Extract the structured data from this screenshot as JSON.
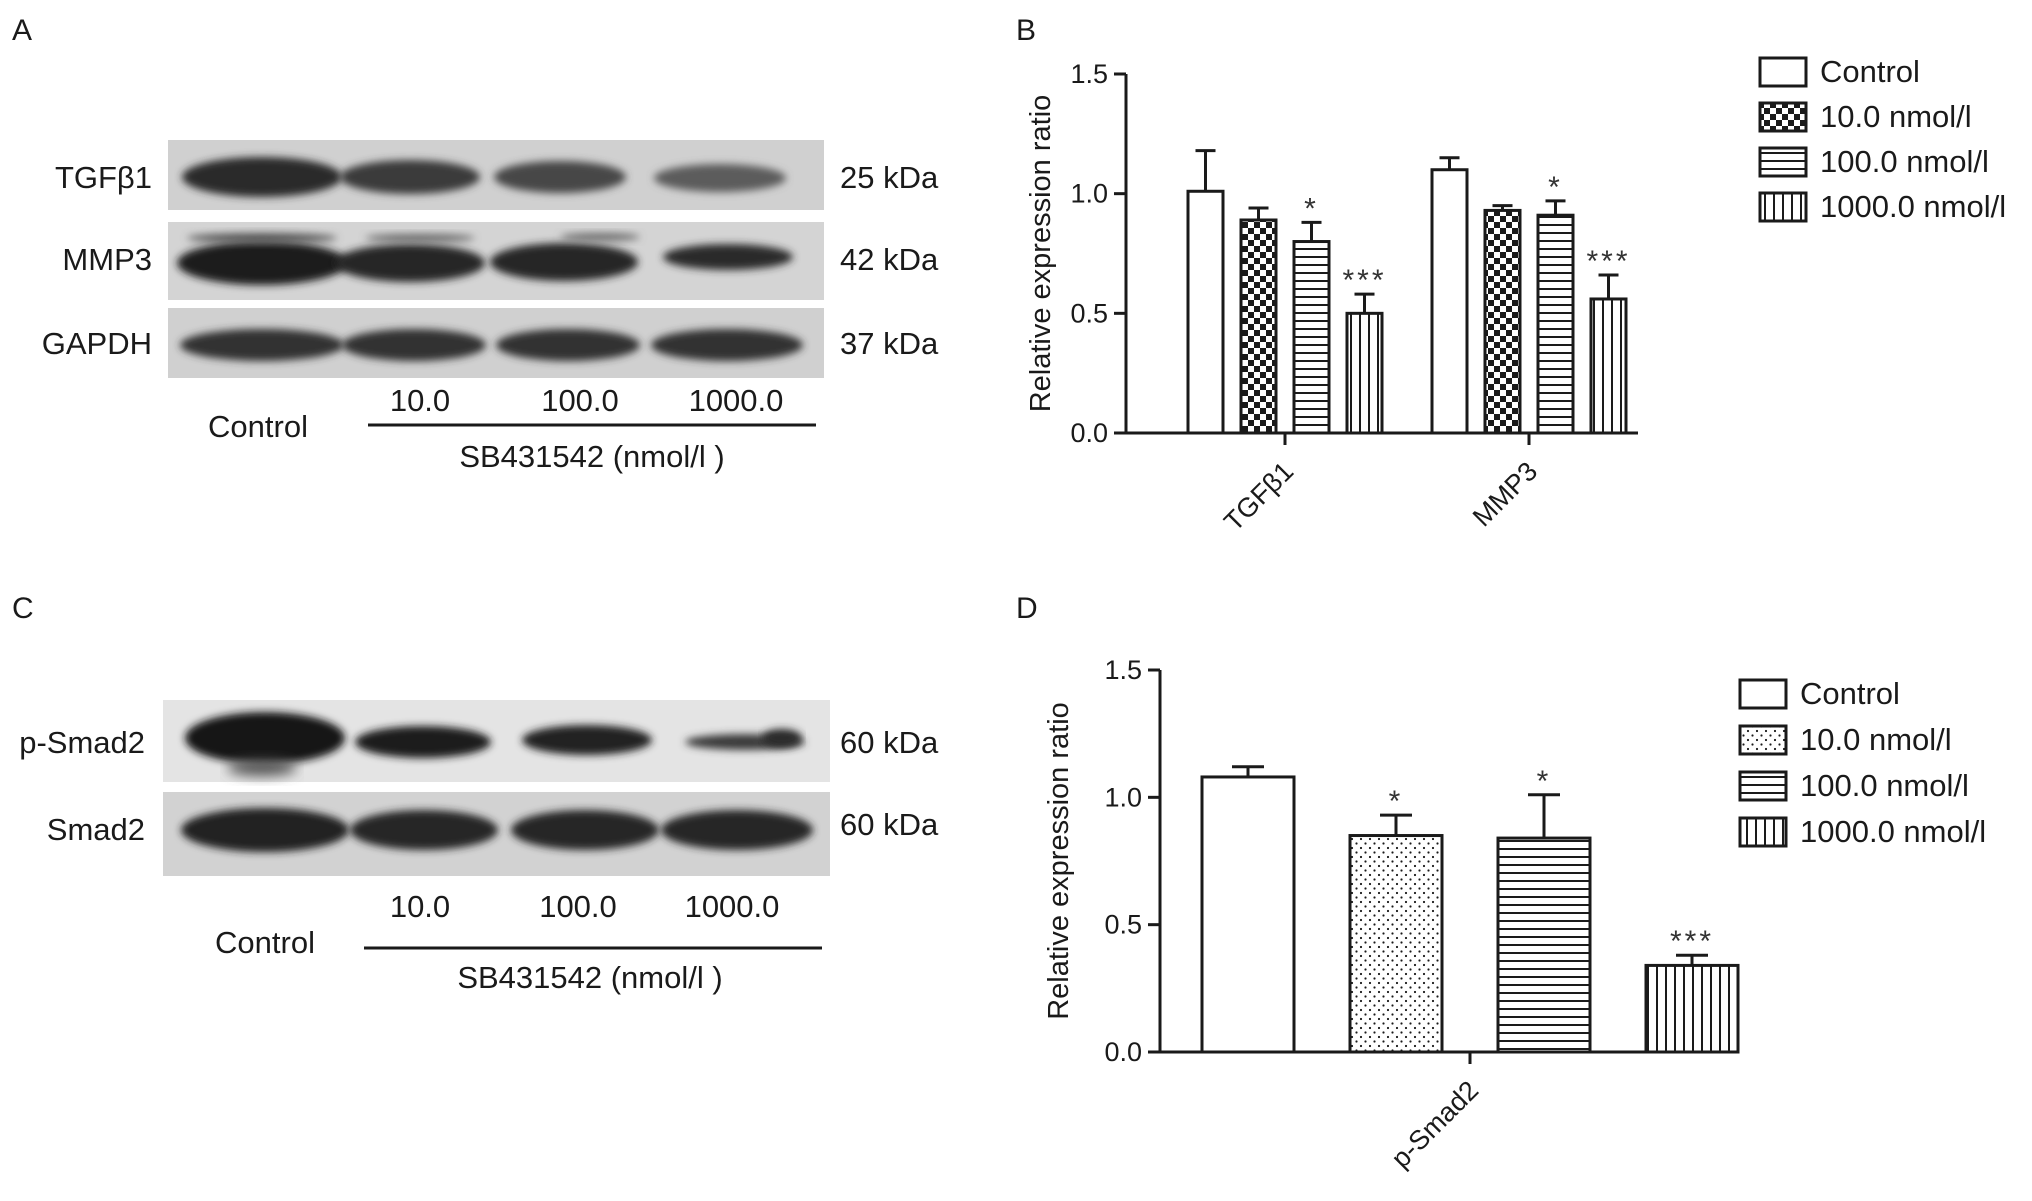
{
  "panel_A": {
    "letter": "A",
    "rows": [
      "TGFβ1",
      "MMP3",
      "GAPDH"
    ],
    "kda": [
      "25 kDa",
      "42 kDa",
      "37 kDa"
    ],
    "control_label": "Control",
    "doses": [
      "10.0",
      "100.0",
      "1000.0"
    ],
    "treatment_label": "SB431542 (nmol/l )"
  },
  "panel_C": {
    "letter": "C",
    "rows": [
      "p-Smad2",
      "Smad2"
    ],
    "kda": [
      "60 kDa",
      "60 kDa"
    ],
    "control_label": "Control",
    "doses": [
      "10.0",
      "100.0",
      "1000.0"
    ],
    "treatment_label": "SB431542 (nmol/l )"
  },
  "chart_data": [
    {
      "panel": "B",
      "type": "bar",
      "ylabel": "Relative expression ratio",
      "ylim": [
        0,
        1.5
      ],
      "yticks": [
        "0.0",
        "0.5",
        "1.0",
        "1.5"
      ],
      "categories": [
        "TGFβ1",
        "MMP3"
      ],
      "legend_position": "top-right",
      "series": [
        {
          "name": "Control",
          "values": [
            1.01,
            1.1
          ],
          "errors": [
            0.17,
            0.05
          ],
          "sig": [
            "",
            ""
          ],
          "pattern": "none"
        },
        {
          "name": "10.0 nmol/l",
          "values": [
            0.89,
            0.93
          ],
          "errors": [
            0.05,
            0.02
          ],
          "sig": [
            "",
            ""
          ],
          "pattern": "checker"
        },
        {
          "name": "100.0 nmol/l",
          "values": [
            0.8,
            0.91
          ],
          "errors": [
            0.08,
            0.06
          ],
          "sig": [
            "*",
            "*"
          ],
          "pattern": "hlines"
        },
        {
          "name": "1000.0 nmol/l",
          "values": [
            0.5,
            0.56
          ],
          "errors": [
            0.08,
            0.1
          ],
          "sig": [
            "***",
            "***"
          ],
          "pattern": "vlines"
        }
      ]
    },
    {
      "panel": "D",
      "type": "bar",
      "ylabel": "Relative expression ratio",
      "ylim": [
        0,
        1.5
      ],
      "yticks": [
        "0.0",
        "0.5",
        "1.0",
        "1.5"
      ],
      "categories": [
        "p-Smad2"
      ],
      "legend_position": "top-right",
      "series": [
        {
          "name": "Control",
          "values": [
            1.08
          ],
          "errors": [
            0.04
          ],
          "sig": [
            ""
          ],
          "pattern": "none"
        },
        {
          "name": "10.0 nmol/l",
          "values": [
            0.85
          ],
          "errors": [
            0.08
          ],
          "sig": [
            "*"
          ],
          "pattern": "dots"
        },
        {
          "name": "100.0 nmol/l",
          "values": [
            0.84
          ],
          "errors": [
            0.17
          ],
          "sig": [
            "*"
          ],
          "pattern": "hlines"
        },
        {
          "name": "1000.0 nmol/l",
          "values": [
            0.34
          ],
          "errors": [
            0.04
          ],
          "sig": [
            "***"
          ],
          "pattern": "vlines"
        }
      ]
    }
  ],
  "colors": {
    "ink": "#1a1a1a",
    "blot_bg": "#d4d4d4",
    "band": "#2a2a2a"
  }
}
